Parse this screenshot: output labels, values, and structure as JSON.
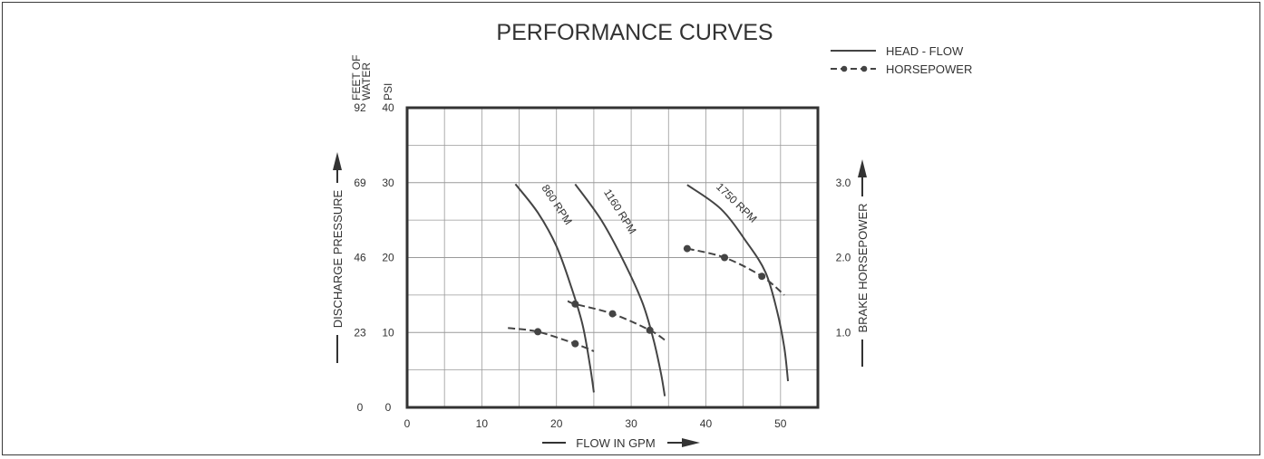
{
  "chart_data": {
    "type": "line",
    "title": "PERFORMANCE CURVES",
    "xlabel": "FLOW IN GPM",
    "xlim": [
      0,
      55
    ],
    "x_ticks": [
      "0",
      "10",
      "20",
      "30",
      "40",
      "50"
    ],
    "ylim_psi": [
      0,
      40
    ],
    "y_ticks_psi": [
      "0",
      "10",
      "20",
      "30",
      "40"
    ],
    "y_ticks_feet": [
      "0",
      "23",
      "46",
      "69",
      "92"
    ],
    "y_header_feet": "FEET OF WATER",
    "y_header_psi": "PSI",
    "ylabel_left": "DISCHARGE PRESSURE",
    "ylim_hp": [
      0,
      4
    ],
    "y_ticks_hp": [
      "1.0",
      "2.0",
      "3.0"
    ],
    "ylabel_right": "BRAKE HORSEPOWER",
    "legend": {
      "position": "top-right",
      "head_flow": "HEAD - FLOW",
      "horsepower": "HORSEPOWER"
    },
    "head_flow_series": [
      {
        "name": "860 RPM",
        "points": [
          [
            14.5,
            29.8
          ],
          [
            17.5,
            26
          ],
          [
            20,
            21.5
          ],
          [
            22,
            16
          ],
          [
            23.5,
            11
          ],
          [
            24.5,
            5.5
          ],
          [
            25,
            2
          ]
        ]
      },
      {
        "name": "1160 RPM",
        "points": [
          [
            22.5,
            29.8
          ],
          [
            26,
            25
          ],
          [
            29,
            19.5
          ],
          [
            31.5,
            14
          ],
          [
            33,
            9
          ],
          [
            34,
            4.5
          ],
          [
            34.5,
            1.5
          ]
        ]
      },
      {
        "name": "1750 RPM",
        "points": [
          [
            37.5,
            29.7
          ],
          [
            42,
            26.5
          ],
          [
            45.5,
            22
          ],
          [
            48,
            18
          ],
          [
            49.5,
            13
          ],
          [
            50.5,
            8
          ],
          [
            51,
            3.5
          ]
        ]
      }
    ],
    "horsepower_series": [
      {
        "name": "860 RPM",
        "points": [
          [
            13.5,
            1.06
          ],
          [
            17.5,
            1.01
          ],
          [
            22.5,
            0.85
          ],
          [
            25,
            0.75
          ]
        ]
      },
      {
        "name": "1160 RPM",
        "points": [
          [
            21.5,
            1.42
          ],
          [
            22.5,
            1.38
          ],
          [
            27.5,
            1.25
          ],
          [
            32.5,
            1.03
          ],
          [
            34.5,
            0.9
          ]
        ]
      },
      {
        "name": "1750 RPM",
        "points": [
          [
            37.5,
            2.12
          ],
          [
            42.5,
            2.0
          ],
          [
            47.5,
            1.75
          ],
          [
            50.5,
            1.5
          ]
        ]
      }
    ],
    "hp_markers": [
      {
        "series": 0,
        "points": [
          [
            17.5,
            1.01
          ],
          [
            22.5,
            0.85
          ]
        ]
      },
      {
        "series": 1,
        "points": [
          [
            22.5,
            1.38
          ],
          [
            27.5,
            1.25
          ],
          [
            32.5,
            1.03
          ]
        ]
      },
      {
        "series": 2,
        "points": [
          [
            37.5,
            2.12
          ],
          [
            42.5,
            2.0
          ],
          [
            47.5,
            1.75
          ]
        ]
      }
    ],
    "curve_labels": [
      {
        "text": "860 RPM",
        "series": 0
      },
      {
        "text": "1160 RPM",
        "series": 1
      },
      {
        "text": "1750 RPM",
        "series": 2
      }
    ],
    "grid": true,
    "colors": {
      "curve": "#444444",
      "grid": "#9a9a9a",
      "frame": "#333333"
    }
  }
}
